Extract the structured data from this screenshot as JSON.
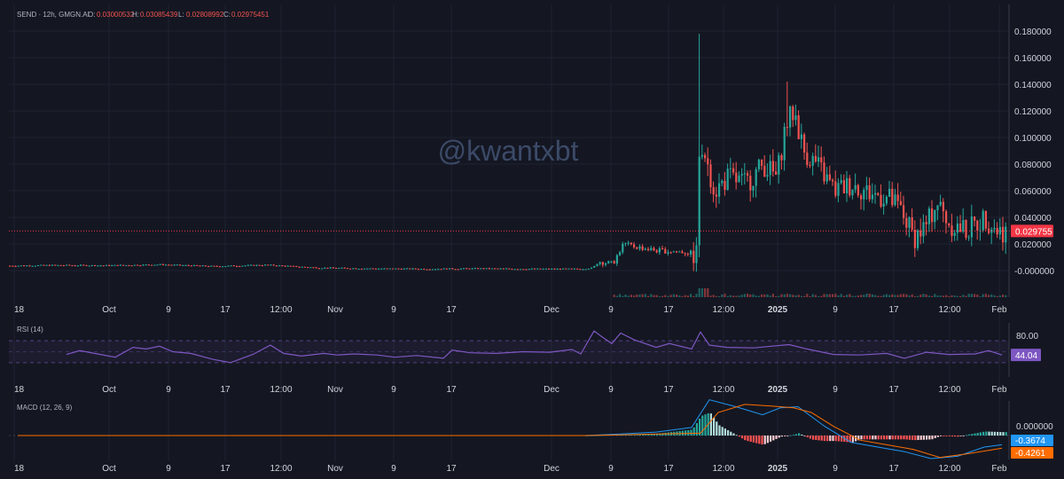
{
  "header": {
    "symbol": "SEND · 12h, GMGN.AI",
    "o_label": "O:",
    "o_value": "0.03000532",
    "h_label": "H:",
    "h_value": "0.03085439",
    "l_label": "L:",
    "l_value": "0.02808992",
    "c_label": "C:",
    "c_value": "0.02975451"
  },
  "watermark": "@kwantxbt",
  "colors": {
    "background": "#141722",
    "up": "#26a69a",
    "down": "#ef5350",
    "rsi_line": "#7e57c2",
    "rsi_band": "#7e57c2",
    "macd_line": "#2196f3",
    "signal_line": "#ff6d00",
    "price_tag": "#f23645"
  },
  "time_axis_labels": [
    "18",
    "Oct",
    "9",
    "17",
    "12:00",
    "Nov",
    "9",
    "17",
    "Dec",
    "9",
    "17",
    "12:00",
    "2025",
    "9",
    "17",
    "12:00",
    "Feb"
  ],
  "chart_data": [
    {
      "type": "candlestick",
      "title": "SEND · 12h, GMGN.AI",
      "y_tick_labels": [
        "0.180000",
        "0.160000",
        "0.140000",
        "0.120000",
        "0.100000",
        "0.080000",
        "0.060000",
        "0.040000",
        "0.020000",
        "-0.000000"
      ],
      "ylim": [
        -0.018,
        0.2
      ],
      "last_price": "0.029755",
      "last_value": 0.029755,
      "series": [
        {
          "name": "price",
          "points": [
            [
              0,
              0.0035
            ],
            [
              60,
              0.004
            ],
            [
              120,
              0.0038
            ],
            [
              180,
              0.0045
            ],
            [
              240,
              0.0032
            ],
            [
              300,
              0.0042
            ],
            [
              360,
              0.002
            ],
            [
              420,
              0.0015
            ],
            [
              480,
              0.0012
            ],
            [
              540,
              0.0015
            ],
            [
              600,
              0.0012
            ],
            [
              655,
              0.0012
            ],
            [
              668,
              0.002
            ],
            [
              673,
              0.007
            ],
            [
              690,
              0.005
            ],
            [
              702,
              0.02
            ],
            [
              715,
              0.018
            ],
            [
              740,
              0.015
            ],
            [
              770,
              0.014
            ],
            [
              785,
              0.012
            ],
            [
              788,
              0.1
            ],
            [
              795,
              0.085
            ],
            [
              805,
              0.06
            ],
            [
              820,
              0.07
            ],
            [
              840,
              0.065
            ],
            [
              860,
              0.08
            ],
            [
              875,
              0.07
            ],
            [
              885,
              0.11
            ],
            [
              895,
              0.12
            ],
            [
              905,
              0.09
            ],
            [
              920,
              0.08
            ],
            [
              940,
              0.06
            ],
            [
              960,
              0.065
            ],
            [
              980,
              0.058
            ],
            [
              1000,
              0.055
            ],
            [
              1015,
              0.045
            ],
            [
              1030,
              0.025
            ],
            [
              1045,
              0.035
            ],
            [
              1055,
              0.052
            ],
            [
              1070,
              0.035
            ],
            [
              1090,
              0.03
            ],
            [
              1110,
              0.04
            ],
            [
              1125,
              0.0298
            ]
          ]
        },
        {
          "name": "volume",
          "points": []
        }
      ]
    },
    {
      "type": "line",
      "title": "RSI (14)",
      "y_tick_labels": [
        "80.00"
      ],
      "last_value": "44.04",
      "bands": [
        70,
        50,
        30
      ],
      "series": [
        {
          "name": "RSI (14)",
          "points": [
            [
              75,
              45
            ],
            [
              90,
              52
            ],
            [
              110,
              46
            ],
            [
              130,
              40
            ],
            [
              150,
              58
            ],
            [
              165,
              55
            ],
            [
              180,
              60
            ],
            [
              195,
              50
            ],
            [
              215,
              47
            ],
            [
              240,
              36
            ],
            [
              260,
              30
            ],
            [
              285,
              45
            ],
            [
              305,
              62
            ],
            [
              320,
              47
            ],
            [
              340,
              42
            ],
            [
              365,
              47
            ],
            [
              380,
              44
            ],
            [
              400,
              46
            ],
            [
              425,
              44
            ],
            [
              445,
              40
            ],
            [
              470,
              43
            ],
            [
              500,
              38
            ],
            [
              510,
              53
            ],
            [
              530,
              48
            ],
            [
              560,
              47
            ],
            [
              590,
              50
            ],
            [
              620,
              49
            ],
            [
              645,
              54
            ],
            [
              655,
              46
            ],
            [
              670,
              88
            ],
            [
              680,
              76
            ],
            [
              690,
              65
            ],
            [
              700,
              84
            ],
            [
              715,
              72
            ],
            [
              740,
              58
            ],
            [
              755,
              65
            ],
            [
              780,
              55
            ],
            [
              790,
              86
            ],
            [
              800,
              62
            ],
            [
              820,
              58
            ],
            [
              850,
              57
            ],
            [
              870,
              60
            ],
            [
              890,
              63
            ],
            [
              910,
              55
            ],
            [
              940,
              45
            ],
            [
              970,
              44
            ],
            [
              1000,
              47
            ],
            [
              1020,
              38
            ],
            [
              1045,
              49
            ],
            [
              1070,
              45
            ],
            [
              1100,
              46
            ],
            [
              1115,
              52
            ],
            [
              1130,
              44
            ]
          ]
        }
      ]
    },
    {
      "type": "line",
      "title": "MACD (12, 26, 9)",
      "y_tick_labels": [
        "0.000000"
      ],
      "ylim": [
        -0.016,
        0.019
      ],
      "macd_value": "-0.3674",
      "signal_value": "-0.4261",
      "series": [
        {
          "name": "MACD",
          "points": [
            [
              20,
              0
            ],
            [
              660,
              0
            ],
            [
              700,
              0.0007
            ],
            [
              740,
              0.0015
            ],
            [
              780,
              0.0035
            ],
            [
              800,
              0.0155
            ],
            [
              830,
              0.0125
            ],
            [
              860,
              0.009
            ],
            [
              880,
              0.012
            ],
            [
              900,
              0.0125
            ],
            [
              930,
              0.004
            ],
            [
              960,
              -0.003
            ],
            [
              990,
              -0.005
            ],
            [
              1020,
              -0.007
            ],
            [
              1050,
              -0.01
            ],
            [
              1080,
              -0.009
            ],
            [
              1110,
              -0.005
            ],
            [
              1130,
              -0.004
            ]
          ]
        },
        {
          "name": "Signal",
          "points": [
            [
              20,
              0
            ],
            [
              660,
              0
            ],
            [
              700,
              0.0003
            ],
            [
              740,
              0.0007
            ],
            [
              790,
              0.001
            ],
            [
              810,
              0.01
            ],
            [
              840,
              0.0135
            ],
            [
              870,
              0.0128
            ],
            [
              895,
              0.012
            ],
            [
              915,
              0.01
            ],
            [
              940,
              0.004
            ],
            [
              970,
              -0.002
            ],
            [
              1000,
              -0.004
            ],
            [
              1030,
              -0.006
            ],
            [
              1060,
              -0.0095
            ],
            [
              1090,
              -0.008
            ],
            [
              1130,
              -0.0055
            ]
          ]
        }
      ]
    }
  ]
}
